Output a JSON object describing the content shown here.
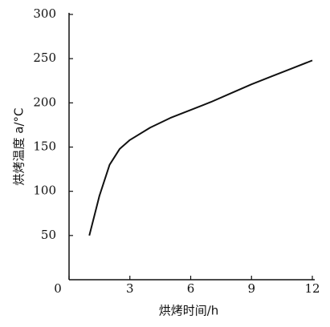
{
  "chart_data": {
    "type": "line",
    "x_label": "烘烤时间/h",
    "y_label": "烘烤温度 a/°C",
    "x": [
      1,
      1.5,
      2,
      2.5,
      3,
      4,
      5,
      6,
      7,
      8,
      9,
      10,
      11,
      12
    ],
    "series": [
      {
        "color": "#111111",
        "values": [
          50,
          95,
          130,
          148,
          158,
          172,
          183,
          192,
          201,
          211,
          221,
          230,
          239,
          248
        ]
      }
    ],
    "xlim": [
      0,
      12
    ],
    "xticks": [
      0,
      3,
      6,
      9,
      12
    ],
    "ylim": [
      0,
      300
    ],
    "yticks": [
      50,
      100,
      150,
      200,
      250,
      300
    ],
    "grid": false
  }
}
